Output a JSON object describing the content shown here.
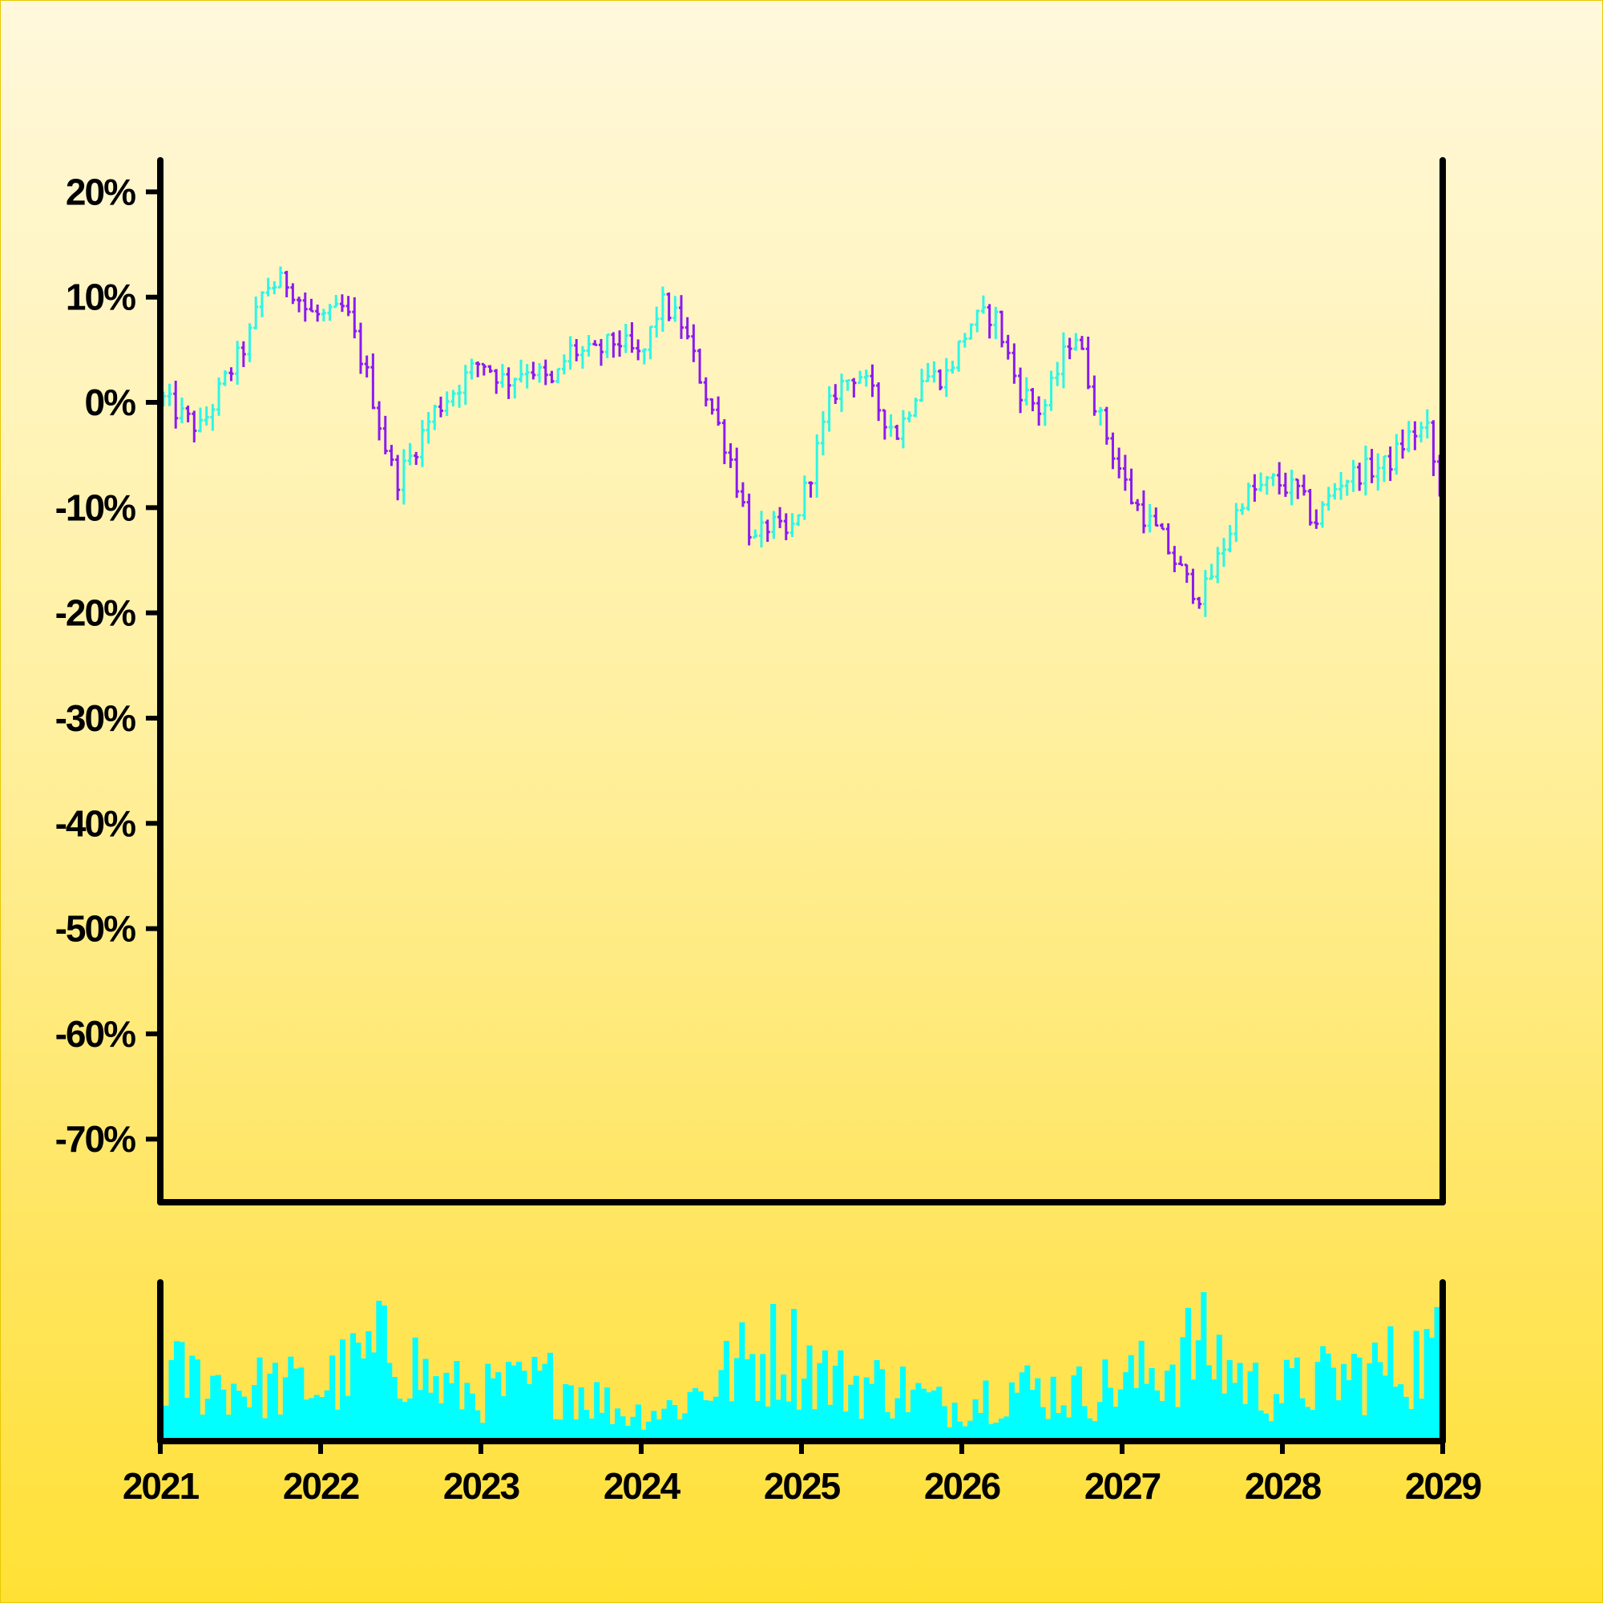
{
  "chart_data": {
    "type": "ohlc",
    "x_axis": {
      "kind": "date",
      "min": 2021.0,
      "max": 2029.0,
      "tick_labels": [
        "2021",
        "2022",
        "2023",
        "2024",
        "2025",
        "2026",
        "2027",
        "2028",
        "2029"
      ]
    },
    "y_axis": {
      "unit": "percent",
      "min": -76,
      "max": 23,
      "ticks": [
        20,
        10,
        0,
        -10,
        -20,
        -30,
        -40,
        -50,
        -60,
        -70
      ],
      "tick_labels": [
        "20%",
        "10%",
        "0%",
        "-10%",
        "-20%",
        "-30%",
        "-40%",
        "-50%",
        "-60%",
        "-70%"
      ]
    },
    "colors": {
      "up": "#2ef5e6",
      "down": "#8a1bf0",
      "volume": "#00ffff",
      "axis": "#000000"
    },
    "grid": false,
    "price_path": [
      [
        2021.0,
        0.5
      ],
      [
        2021.15,
        -1.5
      ],
      [
        2021.25,
        -2.5
      ],
      [
        2021.4,
        2.0
      ],
      [
        2021.55,
        6.0
      ],
      [
        2021.65,
        11.0
      ],
      [
        2021.8,
        11.5
      ],
      [
        2021.92,
        8.5
      ],
      [
        2022.05,
        8.0
      ],
      [
        2022.15,
        9.0
      ],
      [
        2022.3,
        2.0
      ],
      [
        2022.4,
        -4.0
      ],
      [
        2022.47,
        -7.5
      ],
      [
        2022.55,
        -5.5
      ],
      [
        2022.7,
        -1.0
      ],
      [
        2022.85,
        1.5
      ],
      [
        2023.0,
        4.0
      ],
      [
        2023.15,
        2.0
      ],
      [
        2023.3,
        3.5
      ],
      [
        2023.45,
        1.5
      ],
      [
        2023.55,
        5.0
      ],
      [
        2023.7,
        4.5
      ],
      [
        2023.85,
        6.0
      ],
      [
        2024.0,
        4.0
      ],
      [
        2024.12,
        9.5
      ],
      [
        2024.25,
        7.5
      ],
      [
        2024.4,
        1.0
      ],
      [
        2024.55,
        -5.0
      ],
      [
        2024.7,
        -13.5
      ],
      [
        2024.8,
        -11.5
      ],
      [
        2024.92,
        -13.0
      ],
      [
        2025.05,
        -7.0
      ],
      [
        2025.2,
        1.0
      ],
      [
        2025.35,
        3.0
      ],
      [
        2025.5,
        -1.0
      ],
      [
        2025.6,
        -3.0
      ],
      [
        2025.75,
        2.5
      ],
      [
        2025.9,
        2.5
      ],
      [
        2026.05,
        7.5
      ],
      [
        2026.2,
        8.5
      ],
      [
        2026.35,
        1.5
      ],
      [
        2026.5,
        -1.0
      ],
      [
        2026.7,
        7.0
      ],
      [
        2026.85,
        -1.0
      ],
      [
        2027.05,
        -9.0
      ],
      [
        2027.25,
        -13.0
      ],
      [
        2027.4,
        -17.0
      ],
      [
        2027.5,
        -18.5
      ],
      [
        2027.65,
        -13.0
      ],
      [
        2027.75,
        -9.0
      ],
      [
        2027.95,
        -7.5
      ],
      [
        2028.1,
        -8.5
      ],
      [
        2028.2,
        -11.5
      ],
      [
        2028.35,
        -7.5
      ],
      [
        2028.5,
        -6.5
      ],
      [
        2028.65,
        -6.0
      ],
      [
        2028.8,
        -3.0
      ],
      [
        2028.9,
        -2.5
      ],
      [
        2029.0,
        -10.0
      ]
    ],
    "volume_profile": [
      [
        2021.0,
        0.5
      ],
      [
        2021.5,
        0.4
      ],
      [
        2022.0,
        0.4
      ],
      [
        2022.45,
        0.72
      ],
      [
        2022.7,
        0.4
      ],
      [
        2023.0,
        0.35
      ],
      [
        2023.5,
        0.45
      ],
      [
        2023.9,
        0.2
      ],
      [
        2024.2,
        0.25
      ],
      [
        2024.6,
        0.55
      ],
      [
        2024.9,
        0.7
      ],
      [
        2025.2,
        0.45
      ],
      [
        2025.6,
        0.4
      ],
      [
        2025.9,
        0.25
      ],
      [
        2026.3,
        0.4
      ],
      [
        2026.7,
        0.35
      ],
      [
        2027.1,
        0.45
      ],
      [
        2027.5,
        0.7
      ],
      [
        2027.9,
        0.35
      ],
      [
        2028.3,
        0.45
      ],
      [
        2028.7,
        0.55
      ],
      [
        2029.0,
        0.65
      ]
    ]
  }
}
